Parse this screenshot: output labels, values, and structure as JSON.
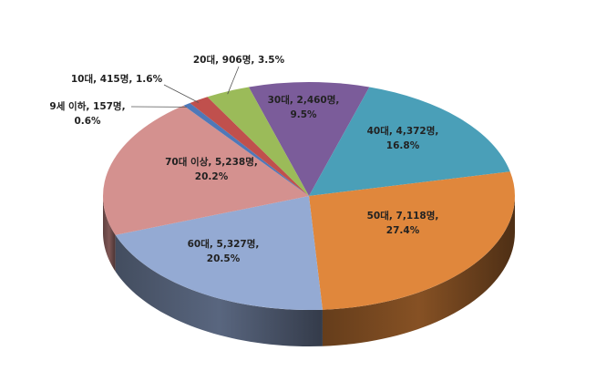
{
  "chart_data": {
    "type": "pie3d",
    "values": [
      2460,
      4372,
      7118,
      5327,
      5238,
      157,
      415,
      906
    ],
    "value_labels": [
      "30대, 2,460명, 9.5%",
      "40대, 4,372명, 16.8%",
      "50대, 7,118명, 27.4%",
      "60대, 5,327명, 20.5%",
      "70대 이상, 5,238명, 20.2%",
      "9세 이하, 157명, 0.6%",
      "10대, 415명, 1.6%",
      "20대, 906명, 3.5%"
    ],
    "colors": [
      "#7b5c9a",
      "#4a9fb8",
      "#e0873c",
      "#94aad3",
      "#d4918f",
      "#4f78b8",
      "#c0504d",
      "#9bbb59"
    ]
  }
}
